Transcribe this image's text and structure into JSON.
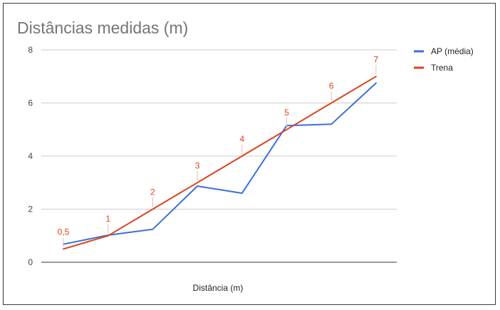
{
  "chart_data": {
    "type": "line",
    "title": "Distâncias medidas (m)",
    "xlabel": "Distância (m)",
    "ylabel": "",
    "ylim": [
      0,
      8
    ],
    "yticks": [
      "0",
      "2",
      "4",
      "6",
      "8"
    ],
    "grid": true,
    "legend_position": "right",
    "series": [
      {
        "name": "AP (média)",
        "color": "#3c6fd9",
        "values": [
          0.68,
          1.02,
          1.24,
          2.87,
          2.6,
          5.15,
          5.2,
          6.75
        ]
      },
      {
        "name": "Trena",
        "color": "#d9441f",
        "values": [
          0.5,
          1,
          2,
          3,
          4,
          5,
          6,
          7
        ],
        "data_labels": [
          "0,5",
          "1",
          "2",
          "3",
          "4",
          "5",
          "6",
          "7"
        ]
      }
    ]
  }
}
